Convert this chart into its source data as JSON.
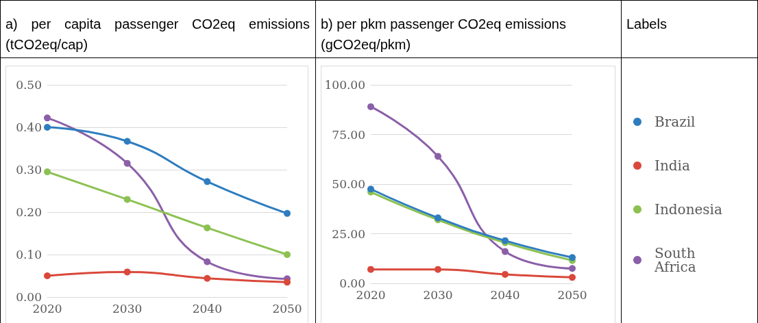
{
  "chart_data": [
    {
      "type": "line",
      "title": "a) per capita passenger CO2eq emissions (tCO2eq/cap)",
      "categories": [
        "2020",
        "2030",
        "2040",
        "2050"
      ],
      "series": [
        {
          "color": "#2e7dbf",
          "values": [
            0.4,
            0.367,
            0.272,
            0.197
          ]
        },
        {
          "color": "#d9483b",
          "values": [
            0.05,
            0.059,
            0.044,
            0.035
          ]
        },
        {
          "color": "#8cc152",
          "values": [
            0.295,
            0.23,
            0.163,
            0.1
          ]
        },
        {
          "color": "#8b5fa8",
          "values": [
            0.422,
            0.315,
            0.083,
            0.043
          ]
        }
      ],
      "ylim": [
        0,
        0.5
      ],
      "yticks": [
        {
          "value": 0,
          "label": "0.00"
        },
        {
          "value": 0.1,
          "label": "0.10"
        },
        {
          "value": 0.2,
          "label": "0.20"
        },
        {
          "value": 0.3,
          "label": "0.30"
        },
        {
          "value": 0.4,
          "label": "0.40"
        },
        {
          "value": 0.5,
          "label": "0.50"
        }
      ],
      "grid": "y",
      "marker": "circle",
      "legend": false
    },
    {
      "type": "line",
      "title": "b) per pkm passenger CO2eq emissions (gCO2eq/pkm)",
      "legend_title": "Labels",
      "categories": [
        "2020",
        "2030",
        "2040",
        "2050"
      ],
      "series": [
        {
          "name": "Brazil",
          "color": "#2e7dbf",
          "values": [
            47.5,
            33,
            21.5,
            13
          ]
        },
        {
          "name": "India",
          "color": "#d9483b",
          "values": [
            7,
            7,
            4.5,
            3
          ]
        },
        {
          "name": "Indonesia",
          "color": "#8cc152",
          "values": [
            46,
            32,
            20.5,
            11.5
          ]
        },
        {
          "name": "South\nAfrica",
          "color": "#8b5fa8",
          "values": [
            89,
            64,
            16,
            7.5
          ]
        }
      ],
      "ylim": [
        0,
        100
      ],
      "yticks": [
        {
          "value": 0,
          "label": "0.00"
        },
        {
          "value": 25,
          "label": "25.00"
        },
        {
          "value": 50,
          "label": "50.00"
        },
        {
          "value": 75,
          "label": "75.00"
        },
        {
          "value": 100,
          "label": "100.00"
        }
      ],
      "grid": "y",
      "marker": "circle",
      "legend": "right"
    }
  ]
}
